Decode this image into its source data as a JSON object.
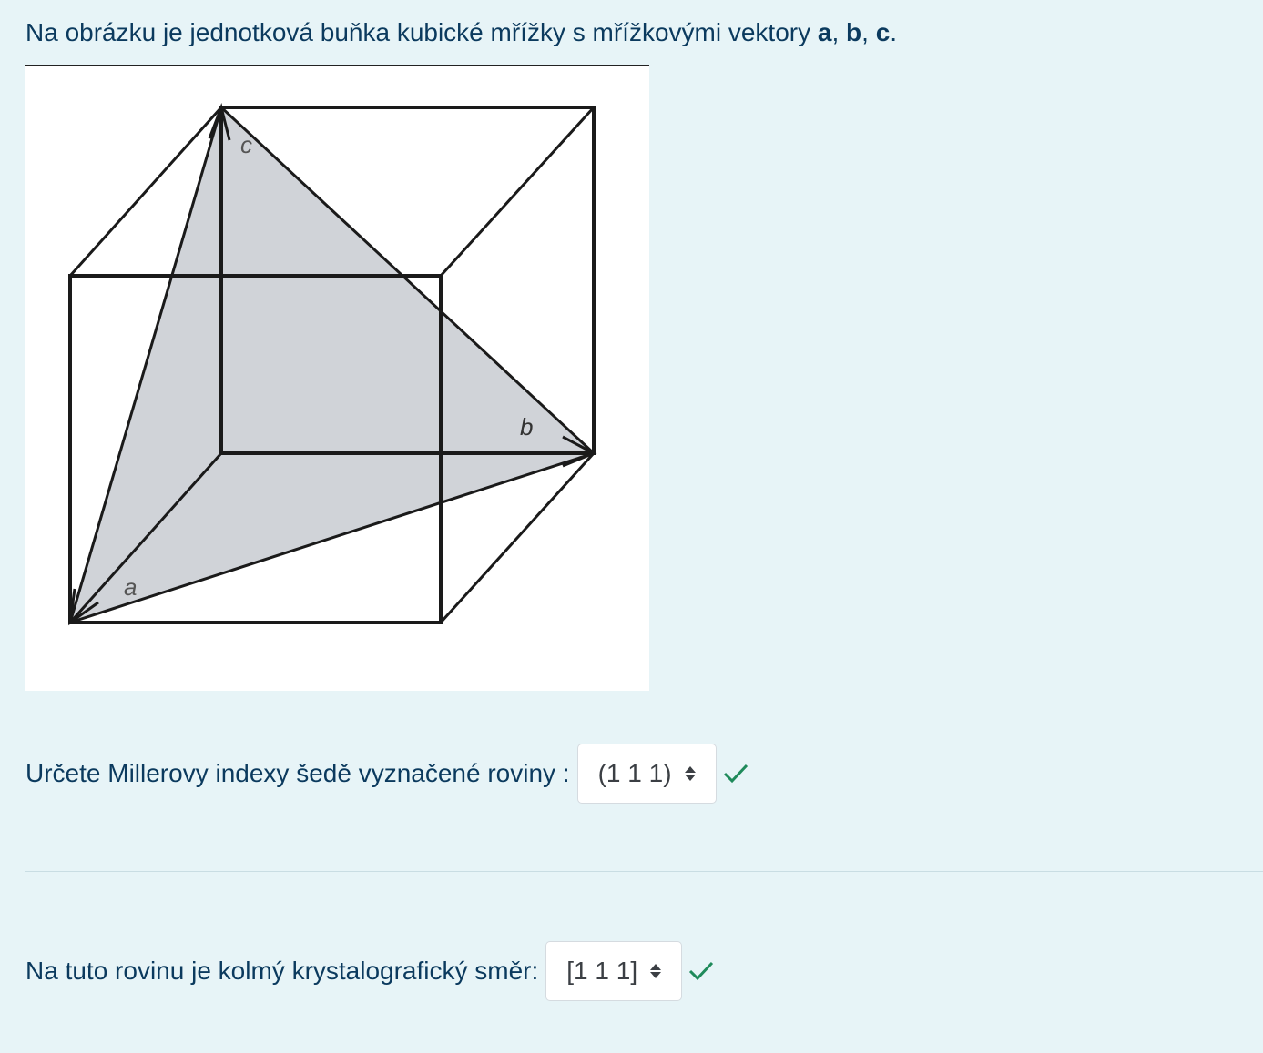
{
  "intro": {
    "text": "Na obrázku je jednotková buňka kubické mřížky s mřížkovými vektory ",
    "vec_a": "a",
    "sep1": ", ",
    "vec_b": "b",
    "sep2": ", ",
    "vec_c": "c",
    "end": "."
  },
  "figure": {
    "label_a": "a",
    "label_b": "b",
    "label_c": "c",
    "plane_color": "#d0d3d8",
    "line_color": "#1a1a1a"
  },
  "question1": {
    "label": "Určete Millerovy indexy šedě vyznačené roviny :",
    "selected": "(1 1 1)",
    "status_icon": "check-icon",
    "status_color": "#1f8a5b"
  },
  "question2": {
    "label": "Na tuto rovinu je kolmý krystalografický směr:",
    "selected": "[1 1 1]",
    "status_icon": "check-icon",
    "status_color": "#1f8a5b"
  }
}
